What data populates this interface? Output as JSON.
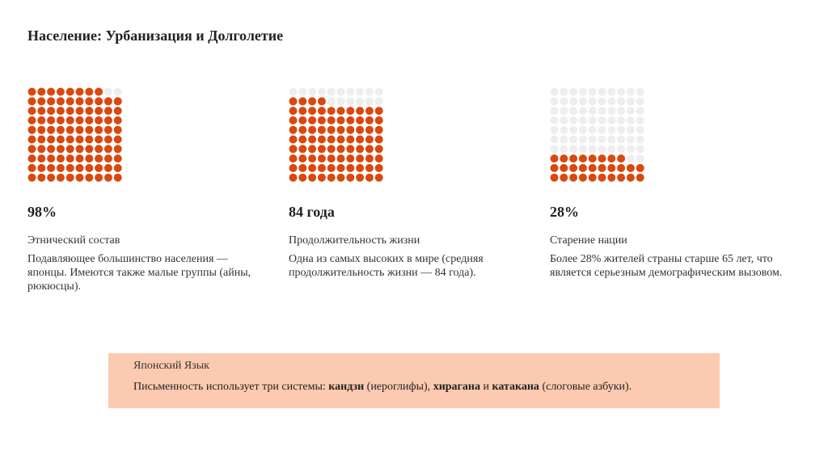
{
  "title": "Население: Урбанизация и Долголетие",
  "panels": [
    {
      "value": 98,
      "value_label": "98%",
      "heading": "Этнический состав",
      "text": "Подавляющее большинство населения — японцы. Имеются также малые группы (айны, рюкюсцы)."
    },
    {
      "value": 84,
      "value_label": "84 года",
      "heading": "Продолжительность жизни",
      "text": "Одна из самых высоких в мире (средняя продолжительность жизни — 84 года)."
    },
    {
      "value": 28,
      "value_label": "28%",
      "heading": "Старение нации",
      "text": "Более 28% жителей страны старше 65 лет, что является серьезным демографическим вызовом."
    }
  ],
  "note": {
    "title": "Японский Язык",
    "parts": [
      {
        "text": "Письменность использует три системы: ",
        "bold": false
      },
      {
        "text": "кандзи",
        "bold": true
      },
      {
        "text": " (иероглифы), ",
        "bold": false
      },
      {
        "text": "хирагана",
        "bold": true
      },
      {
        "text": " и ",
        "bold": false
      },
      {
        "text": "катакана",
        "bold": true
      },
      {
        "text": " (слоговые азбуки).",
        "bold": false
      }
    ]
  }
}
